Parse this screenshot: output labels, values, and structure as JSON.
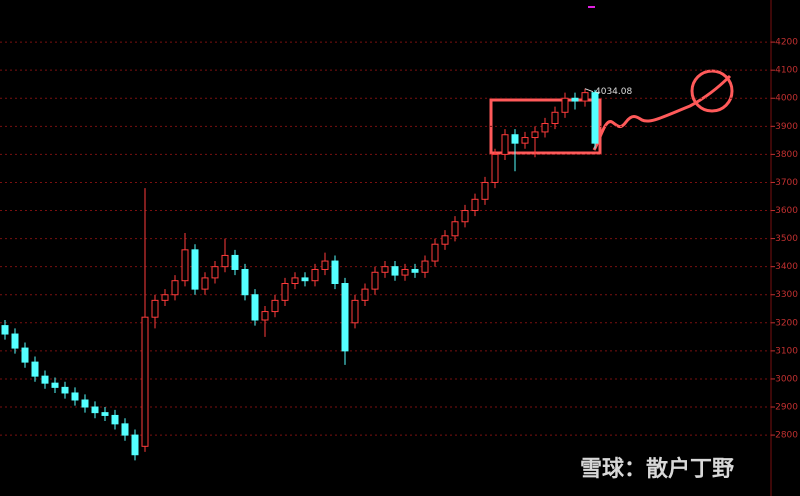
{
  "chart_data": {
    "type": "candlestick",
    "open": [
      3190,
      3160,
      3110,
      3060,
      3010,
      2985,
      2970,
      2950,
      2925,
      2900,
      2880,
      2870,
      2840,
      2800,
      2760,
      3220,
      3280,
      3300,
      3350,
      3460,
      3320,
      3360,
      3400,
      3440,
      3390,
      3300,
      3210,
      3240,
      3280,
      3340,
      3360,
      3350,
      3390,
      3420,
      3340,
      3200,
      3280,
      3320,
      3380,
      3400,
      3370,
      3390,
      3380,
      3420,
      3480,
      3510,
      3560,
      3600,
      3640,
      3700,
      3800,
      3870,
      3840,
      3860,
      3880,
      3910,
      3950,
      4000,
      3990,
      4020
    ],
    "high": [
      3210,
      3180,
      3130,
      3080,
      3030,
      3005,
      2990,
      2970,
      2945,
      2920,
      2900,
      2890,
      2860,
      2820,
      3680,
      3300,
      3320,
      3370,
      3520,
      3480,
      3380,
      3420,
      3500,
      3460,
      3410,
      3320,
      3260,
      3300,
      3360,
      3380,
      3380,
      3410,
      3450,
      3440,
      3360,
      3300,
      3340,
      3400,
      3420,
      3420,
      3410,
      3410,
      3440,
      3500,
      3530,
      3580,
      3620,
      3660,
      3720,
      3820,
      3890,
      3890,
      3880,
      3900,
      3930,
      3970,
      4020,
      4020,
      4034.08,
      4030
    ],
    "low": [
      3140,
      3090,
      3040,
      2990,
      2965,
      2950,
      2930,
      2905,
      2880,
      2860,
      2850,
      2820,
      2780,
      2710,
      2740,
      3180,
      3260,
      3280,
      3330,
      3300,
      3300,
      3340,
      3380,
      3370,
      3280,
      3190,
      3150,
      3220,
      3260,
      3320,
      3330,
      3330,
      3370,
      3320,
      3050,
      3180,
      3260,
      3300,
      3360,
      3350,
      3350,
      3360,
      3360,
      3400,
      3460,
      3490,
      3540,
      3580,
      3620,
      3680,
      3780,
      3740,
      3820,
      3790,
      3860,
      3890,
      3930,
      3960,
      3970,
      3820
    ],
    "close": [
      3160,
      3110,
      3060,
      3010,
      2985,
      2970,
      2950,
      2925,
      2900,
      2880,
      2870,
      2840,
      2800,
      2730,
      3220,
      3280,
      3300,
      3350,
      3460,
      3320,
      3360,
      3400,
      3440,
      3390,
      3300,
      3210,
      3240,
      3280,
      3340,
      3360,
      3350,
      3390,
      3420,
      3340,
      3100,
      3280,
      3320,
      3380,
      3400,
      3370,
      3390,
      3380,
      3420,
      3480,
      3510,
      3560,
      3600,
      3640,
      3700,
      3800,
      3870,
      3840,
      3860,
      3880,
      3910,
      3950,
      4000,
      3990,
      4020,
      3840
    ],
    "up_color": "#ff3b3b",
    "down_color": "#54ffff",
    "ylim": [
      2583,
      4350
    ],
    "yticks": [
      2800,
      2900,
      3000,
      3100,
      3200,
      3300,
      3400,
      3500,
      3600,
      3700,
      3800,
      3900,
      4000,
      4100,
      4200
    ],
    "grid": true,
    "watermark": "雪球：散户丁野"
  }
}
